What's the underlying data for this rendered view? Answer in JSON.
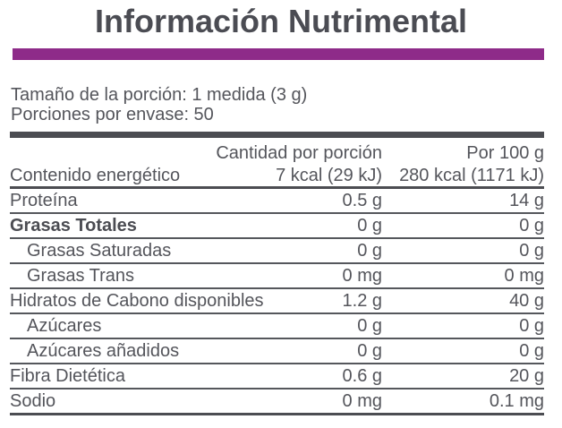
{
  "title": "Información Nutrimental",
  "colors": {
    "accent_purple": "#8e2b89",
    "bar_dark_gray": "#4c4d52",
    "text_gray": "#54555b"
  },
  "serving": {
    "portion_size": "Tamaño de la porción: 1 medida (3 g)",
    "portions_per_container": "Porciones por envase: 50"
  },
  "table": {
    "col_header_per_serving": "Cantidad por porción",
    "col_header_per_100g": "Por 100 g",
    "energy_row": {
      "label": "Contenido energético",
      "per_serving": "7 kcal (29 kJ)",
      "per_100g": "280 kcal (1171 kJ)"
    },
    "rows": [
      {
        "label": "Proteína",
        "per_serving": "0.5 g",
        "per_100g": "14 g",
        "bold": false,
        "indent": false
      },
      {
        "label": "Grasas Totales",
        "per_serving": "0 g",
        "per_100g": "0 g",
        "bold": true,
        "indent": false
      },
      {
        "label": "Grasas Saturadas",
        "per_serving": "0 g",
        "per_100g": "0 g",
        "bold": false,
        "indent": true
      },
      {
        "label": "Grasas Trans",
        "per_serving": "0 mg",
        "per_100g": "0 mg",
        "bold": false,
        "indent": true
      },
      {
        "label": "Hidratos de Cabono disponibles",
        "per_serving": "1.2 g",
        "per_100g": "40 g",
        "bold": false,
        "indent": false
      },
      {
        "label": "Azúcares",
        "per_serving": "0 g",
        "per_100g": "0 g",
        "bold": false,
        "indent": true
      },
      {
        "label": "Azúcares añadidos",
        "per_serving": "0 g",
        "per_100g": "0 g",
        "bold": false,
        "indent": true
      },
      {
        "label": "Fibra Dietética",
        "per_serving": "0.6 g",
        "per_100g": "20 g",
        "bold": false,
        "indent": false
      },
      {
        "label": "Sodio",
        "per_serving": "0 mg",
        "per_100g": "0.1 mg",
        "bold": false,
        "indent": false
      }
    ]
  }
}
